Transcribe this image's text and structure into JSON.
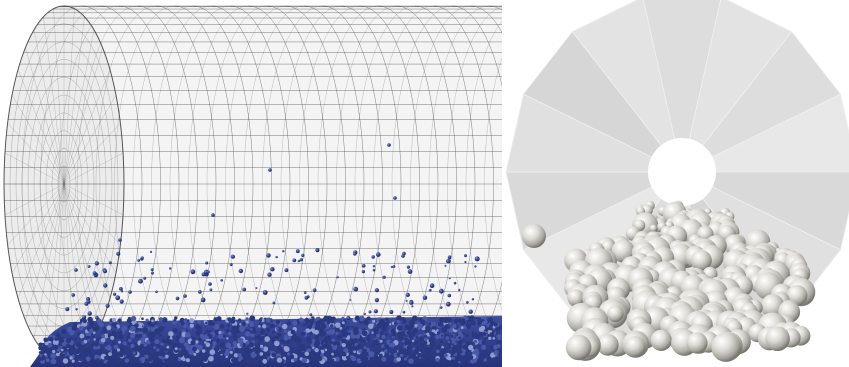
{
  "figure": {
    "panels": [
      {
        "id": "left",
        "content": "mesh-cylinder-side-view",
        "mesh_color": "#3a3a3a",
        "particle_color": "#2f3f8f",
        "background": "#ffffff"
      },
      {
        "id": "right",
        "content": "polygon-cross-section-with-spheres",
        "face_colors": [
          "#e3e3e3",
          "#dddddd",
          "#e8e8e8",
          "#d9d9d9",
          "#e0e0e0",
          "#d6d6d6"
        ],
        "sphere_color": "#d8d6cf",
        "background": "#ffffff"
      }
    ]
  }
}
